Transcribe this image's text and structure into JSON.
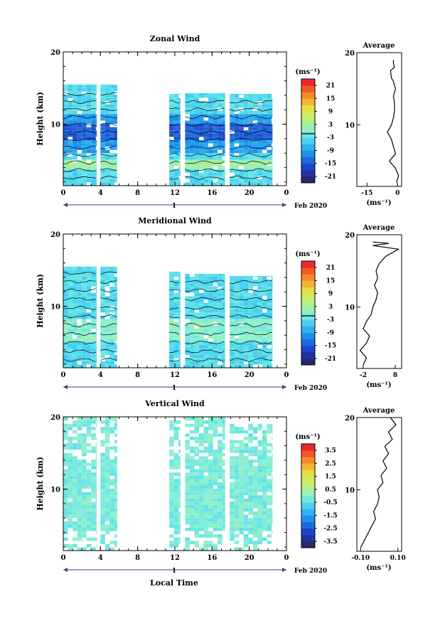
{
  "figure": {
    "date_label": "Feb 2020",
    "day_label": "1",
    "xlabel": "Local Time",
    "x_ticks": [
      "0",
      "4",
      "8",
      "12",
      "16",
      "20",
      "0"
    ]
  },
  "chart_data": [
    {
      "type": "heatmap",
      "title": "Zonal Wind",
      "ylabel": "Height (km)",
      "xlim": [
        0,
        24
      ],
      "ylim": [
        1.5,
        20
      ],
      "y_ticks": [
        "20",
        "10"
      ],
      "colorbar": {
        "unit": "(ms⁻¹)",
        "ticks": [
          "21",
          "15",
          "9",
          "3",
          "-3",
          "-9",
          "-15",
          "-21"
        ],
        "range": [
          -24,
          24
        ]
      },
      "data_blocks": [
        [
          0,
          3.6
        ],
        [
          4,
          5.8
        ],
        [
          11.4,
          12.6
        ],
        [
          13.1,
          17.4
        ],
        [
          17.9,
          22.5
        ]
      ],
      "top_km": [
        15.5,
        15.5,
        14.2,
        14.3,
        14.2
      ],
      "average": {
        "title": "Average",
        "xlim": [
          -20,
          2
        ],
        "x_ticks": [
          "-15",
          "0"
        ],
        "y_ticks": [
          "20",
          "10"
        ],
        "xlabel": "(ms⁻¹)",
        "points": [
          [
            -0.5,
            2
          ],
          [
            0.5,
            3
          ],
          [
            -1,
            4
          ],
          [
            -4,
            5
          ],
          [
            -1,
            6
          ],
          [
            -2,
            7
          ],
          [
            -3,
            8
          ],
          [
            -5,
            9
          ],
          [
            -3,
            10
          ],
          [
            -2,
            11
          ],
          [
            -1.5,
            12
          ],
          [
            -1.5,
            13
          ],
          [
            -2,
            14
          ],
          [
            -1,
            15
          ],
          [
            -2,
            16
          ],
          [
            -3,
            16.5
          ],
          [
            -3.5,
            17.5
          ],
          [
            -1.5,
            18
          ],
          [
            -2,
            18.5
          ],
          [
            -2,
            19
          ]
        ]
      }
    },
    {
      "type": "heatmap",
      "title": "Meridional Wind",
      "ylabel": "Height (km)",
      "xlim": [
        0,
        24
      ],
      "ylim": [
        1.5,
        20
      ],
      "y_ticks": [
        "20",
        "10"
      ],
      "colorbar": {
        "unit": "(ms⁻¹)",
        "ticks": [
          "21",
          "15",
          "9",
          "3",
          "-3",
          "-9",
          "-15",
          "-21"
        ],
        "range": [
          -24,
          24
        ]
      },
      "data_blocks": [
        [
          0,
          3.6
        ],
        [
          4,
          5.8
        ],
        [
          11.4,
          12.6
        ],
        [
          13.1,
          17.4
        ],
        [
          17.9,
          22.5
        ]
      ],
      "top_km": [
        15.5,
        15.5,
        14.8,
        14.5,
        14.2
      ],
      "average": {
        "title": "Average",
        "xlim": [
          -4,
          10
        ],
        "x_ticks": [
          "-2",
          "8"
        ],
        "y_ticks": [
          "20",
          "10"
        ],
        "xlabel": "(ms⁻¹)",
        "points": [
          [
            -2,
            2
          ],
          [
            -1,
            3
          ],
          [
            -3,
            4
          ],
          [
            -1,
            5
          ],
          [
            0,
            6
          ],
          [
            -2,
            7
          ],
          [
            -1,
            8
          ],
          [
            0.5,
            9
          ],
          [
            1,
            10
          ],
          [
            2,
            11
          ],
          [
            2.5,
            12
          ],
          [
            1.5,
            13
          ],
          [
            2.5,
            14
          ],
          [
            2,
            15
          ],
          [
            3,
            16
          ],
          [
            5,
            17
          ],
          [
            9,
            18
          ],
          [
            1,
            18.5
          ],
          [
            6,
            18.8
          ],
          [
            1,
            19
          ]
        ]
      }
    },
    {
      "type": "heatmap",
      "title": "Vertical Wind",
      "ylabel": "Height (km)",
      "xlim": [
        0,
        24
      ],
      "ylim": [
        1.5,
        20
      ],
      "y_ticks": [
        "20",
        "10"
      ],
      "colorbar": {
        "unit": "(ms⁻¹)",
        "ticks": [
          "3.5",
          "2.5",
          "1.5",
          "0.5",
          "-0.5",
          "-1.5",
          "-2.5",
          "-3.5"
        ],
        "range": [
          -4,
          4
        ]
      },
      "data_blocks": [
        [
          0,
          3.6
        ],
        [
          4,
          5.8
        ],
        [
          11.4,
          12.6
        ],
        [
          13.1,
          17.4
        ],
        [
          17.9,
          22.5
        ]
      ],
      "top_km": [
        20,
        20,
        20,
        20,
        19
      ],
      "average": {
        "title": "Average",
        "xlim": [
          -0.12,
          0.12
        ],
        "x_ticks": [
          "-0.10",
          "0.10"
        ],
        "y_ticks": [
          "20",
          "10"
        ],
        "xlabel": "(ms⁻¹)",
        "points": [
          [
            -0.1,
            2
          ],
          [
            -0.08,
            3
          ],
          [
            -0.06,
            4
          ],
          [
            -0.04,
            5
          ],
          [
            -0.02,
            6
          ],
          [
            -0.03,
            7
          ],
          [
            -0.01,
            8
          ],
          [
            0.0,
            9
          ],
          [
            -0.01,
            10
          ],
          [
            0.02,
            11
          ],
          [
            0.01,
            12
          ],
          [
            0.04,
            13
          ],
          [
            0.02,
            14
          ],
          [
            0.05,
            15
          ],
          [
            0.03,
            16
          ],
          [
            0.07,
            17
          ],
          [
            0.05,
            18
          ],
          [
            0.09,
            19
          ],
          [
            0.06,
            20
          ]
        ]
      }
    }
  ]
}
